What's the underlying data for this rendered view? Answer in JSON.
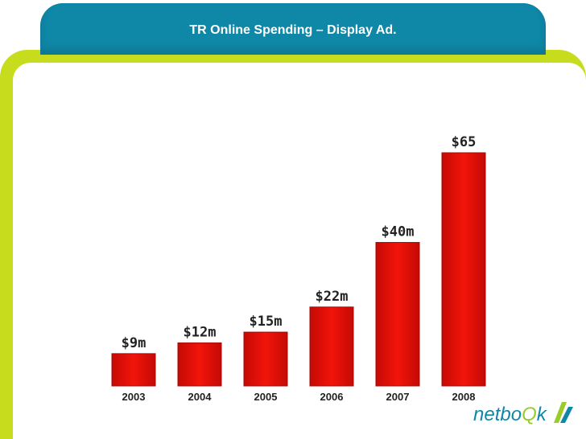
{
  "title": "TR Online Spending – Display Ad.",
  "logo": {
    "text_before": "netbo",
    "text_q": "Q",
    "text_after": "k"
  },
  "colors": {
    "bar": "#e60f06",
    "frame": "#c8dc1e",
    "banner": "#0f87a6"
  },
  "chart_data": {
    "type": "bar",
    "title": "TR Online Spending – Display Ad.",
    "xlabel": "",
    "ylabel": "",
    "categories": [
      "2003",
      "2004",
      "2005",
      "2006",
      "2007",
      "2008"
    ],
    "values": [
      9,
      12,
      15,
      22,
      40,
      65
    ],
    "data_labels": [
      "$9m",
      "$12m",
      "$15m",
      "$22m",
      "$40m",
      "$65"
    ],
    "ylim": [
      0,
      65
    ],
    "grid": false,
    "legend": "none"
  }
}
